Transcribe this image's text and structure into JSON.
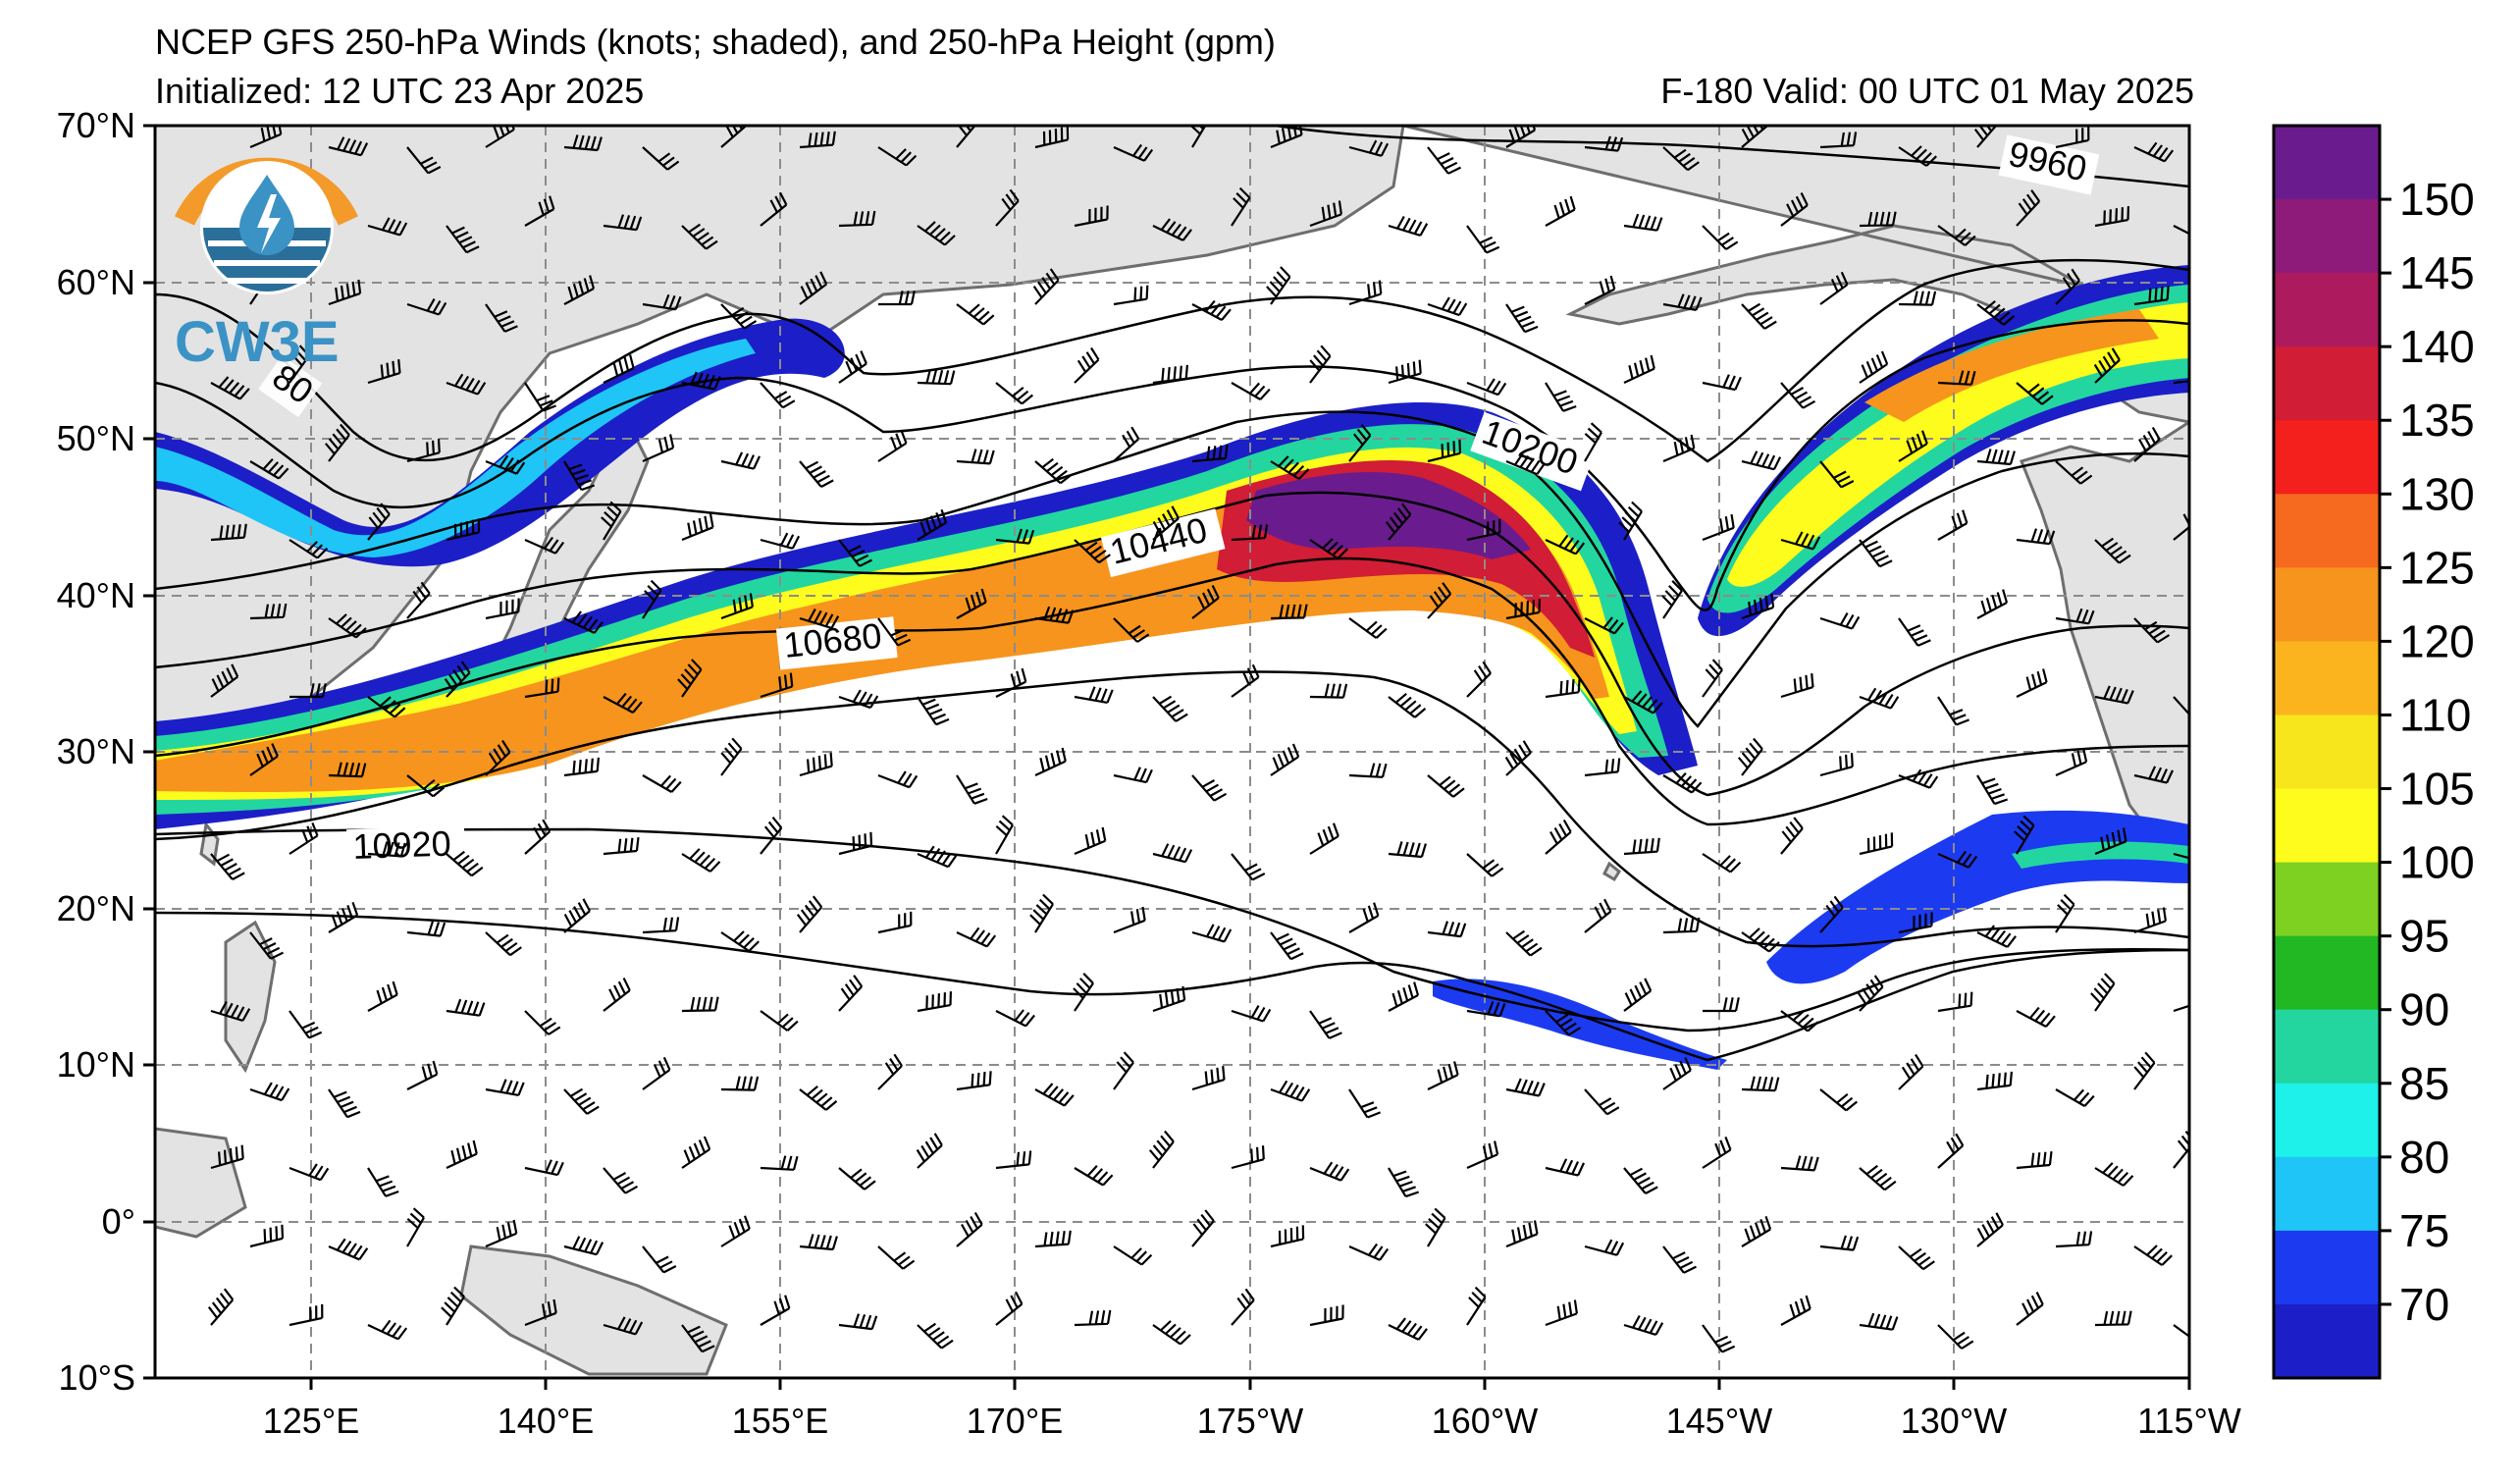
{
  "header": {
    "title": "NCEP GFS 250-hPa Winds (knots; shaded), and 250-hPa Height (gpm)",
    "initialized": "Initialized: 12 UTC 23 Apr 2025",
    "valid": "F-180  Valid: 00 UTC 01 May 2025"
  },
  "logo": {
    "text": "CW3E",
    "colors": {
      "orange": "#f39a2a",
      "blue": "#3b92c5",
      "teal": "#2a6f9a"
    }
  },
  "map": {
    "lat_labels": [
      "70°N",
      "60°N",
      "50°N",
      "40°N",
      "30°N",
      "20°N",
      "10°N",
      "0°",
      "10°S"
    ],
    "lon_labels": [
      "125°E",
      "140°E",
      "155°E",
      "170°E",
      "175°W",
      "160°W",
      "145°W",
      "130°W",
      "115°W"
    ],
    "colors": {
      "land": "#e3e3e3",
      "coast": "#6e6e6e",
      "grid": "#8c8c8c",
      "contour": "#000000"
    },
    "contour_labels": [
      "9960",
      "10200",
      "10440",
      "10680",
      "10920",
      "80"
    ]
  },
  "colorbar": {
    "ticks": [
      "150",
      "145",
      "140",
      "135",
      "130",
      "125",
      "120",
      "110",
      "105",
      "100",
      "95",
      "90",
      "85",
      "80",
      "75",
      "70"
    ],
    "colors": [
      "#6a1c8e",
      "#8e1b7a",
      "#ad1a5e",
      "#d11d35",
      "#f4201d",
      "#f56a1e",
      "#f7941d",
      "#fbb41e",
      "#f6e61b",
      "#fdfc1d",
      "#7ed121",
      "#21b823",
      "#23d6a0",
      "#1ef0ea",
      "#1fc5f6",
      "#1c3bf0",
      "#1c1fc7"
    ]
  }
}
